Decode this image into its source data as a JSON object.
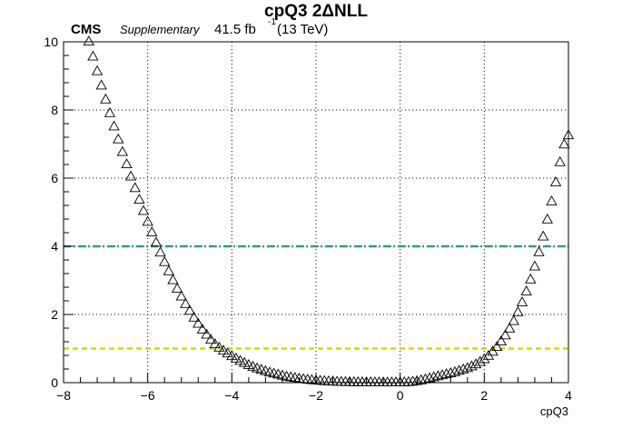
{
  "header": {
    "title": "cpQ3 2ΔNLL",
    "experiment": "CMS",
    "status": "Supplementary",
    "luminosity": "41.5 fb",
    "luminosity_exponent": "-1",
    "energy": "(13 TeV)"
  },
  "chart_data": {
    "type": "scatter",
    "title": "cpQ3 2ΔNLL",
    "xlabel": "cpQ3",
    "ylabel": "",
    "xlim": [
      -8,
      4
    ],
    "ylim": [
      0,
      10
    ],
    "x_ticks": [
      -8,
      -6,
      -4,
      -2,
      0,
      2,
      4
    ],
    "y_ticks": [
      0,
      2,
      4,
      6,
      8,
      10
    ],
    "x_tick_labels": [
      "−8",
      "−6",
      "−4",
      "−2",
      "0",
      "2",
      "4"
    ],
    "y_tick_labels": [
      "0",
      "2",
      "4",
      "6",
      "8",
      "10"
    ],
    "grid": true,
    "marker": "open-triangle",
    "series": [
      {
        "x": [
          -7.4,
          -7.3,
          -7.2,
          -7.1,
          -7.0,
          -6.9,
          -6.8,
          -6.7,
          -6.6,
          -6.5,
          -6.4,
          -6.3,
          -6.2,
          -6.1,
          -6.0,
          -5.9,
          -5.8,
          -5.7,
          -5.6,
          -5.5,
          -5.4,
          -5.3,
          -5.2,
          -5.1,
          -5.0,
          -4.9,
          -4.8,
          -4.7,
          -4.6,
          -4.5,
          -4.4,
          -4.3,
          -4.2,
          -4.1,
          -4.0,
          -3.9,
          -3.8,
          -3.7,
          -3.6,
          -3.5,
          -3.4,
          -3.3,
          -3.2,
          -3.1,
          -3.0,
          -2.9,
          -2.8,
          -2.7,
          -2.6,
          -2.5,
          -2.4,
          -2.3,
          -2.2,
          -2.1,
          -2.0,
          -1.9,
          -1.8,
          -1.7,
          -1.6,
          -1.5,
          -1.4,
          -1.3,
          -1.2,
          -1.1,
          -1.0,
          -0.9,
          -0.8,
          -0.7,
          -0.6,
          -0.5,
          -0.4,
          -0.3,
          -0.2,
          -0.1,
          0.0,
          0.1,
          0.2,
          0.3,
          0.4,
          0.5,
          0.6,
          0.7,
          0.8,
          0.9,
          1.0,
          1.1,
          1.2,
          1.3,
          1.4,
          1.5,
          1.6,
          1.7,
          1.8,
          1.9,
          2.0,
          2.1,
          2.2,
          2.3,
          2.4,
          2.5,
          2.6,
          2.7,
          2.8,
          2.9,
          3.0,
          3.1,
          3.2,
          3.3,
          3.4,
          3.5,
          3.6,
          3.7,
          3.8,
          3.9,
          4.0
        ],
        "y": [
          10.0,
          9.56,
          9.13,
          8.71,
          8.3,
          7.9,
          7.51,
          7.13,
          6.76,
          6.4,
          6.04,
          5.7,
          5.36,
          5.03,
          4.71,
          4.4,
          4.1,
          3.81,
          3.53,
          3.26,
          3.0,
          2.75,
          2.52,
          2.3,
          2.1,
          1.9,
          1.72,
          1.55,
          1.4,
          1.25,
          1.12,
          1.02,
          0.93,
          0.85,
          0.77,
          0.7,
          0.63,
          0.57,
          0.51,
          0.46,
          0.41,
          0.37,
          0.33,
          0.29,
          0.26,
          0.23,
          0.2,
          0.17,
          0.15,
          0.13,
          0.11,
          0.095,
          0.08,
          0.068,
          0.057,
          0.047,
          0.039,
          0.032,
          0.026,
          0.021,
          0.017,
          0.013,
          0.01,
          0.008,
          0.006,
          0.004,
          0.003,
          0.002,
          0.001,
          0.0,
          0.0,
          0.0,
          0.0,
          0.0,
          0.0,
          0.003,
          0.01,
          0.022,
          0.04,
          0.063,
          0.09,
          0.12,
          0.15,
          0.18,
          0.21,
          0.24,
          0.27,
          0.3,
          0.34,
          0.38,
          0.42,
          0.47,
          0.53,
          0.6,
          0.68,
          0.78,
          0.9,
          1.04,
          1.2,
          1.38,
          1.58,
          1.8,
          2.06,
          2.35,
          2.67,
          3.02,
          3.4,
          3.82,
          4.28,
          4.78,
          5.31,
          5.87,
          6.46,
          6.98,
          7.25
        ]
      }
    ],
    "reference_lines": [
      {
        "y": 4,
        "color": "#2a9d8f",
        "style": "dash-dot"
      },
      {
        "y": 1,
        "color": "#d9d900",
        "style": "dashed"
      }
    ]
  }
}
